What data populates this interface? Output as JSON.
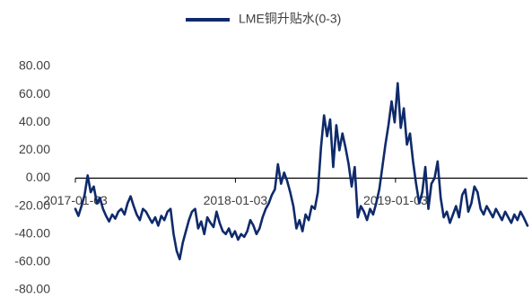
{
  "chart_data": {
    "type": "line",
    "title": "",
    "xlabel": "",
    "ylabel": "",
    "ylim": [
      -80,
      80
    ],
    "y_ticks": [
      "80.00",
      "60.00",
      "40.00",
      "20.00",
      "0.00",
      "-20.00",
      "-40.00",
      "-60.00",
      "-80.00"
    ],
    "x_tick_labels": [
      "2017-01-03",
      "2018-01-03",
      "2019-01-03"
    ],
    "xlim": [
      "2017-01-03",
      "2019-10-31"
    ],
    "grid": false,
    "legend_position": "top-center",
    "series": [
      {
        "name": "LME铜升贴水(0-3)",
        "color": "#0f2a6b",
        "points": [
          [
            "2017-01-03",
            -22
          ],
          [
            "2017-01-10",
            -27
          ],
          [
            "2017-01-17",
            -20
          ],
          [
            "2017-01-24",
            -12
          ],
          [
            "2017-01-31",
            2
          ],
          [
            "2017-02-07",
            -10
          ],
          [
            "2017-02-14",
            -6
          ],
          [
            "2017-02-21",
            -18
          ],
          [
            "2017-02-28",
            -14
          ],
          [
            "2017-03-07",
            -22
          ],
          [
            "2017-03-14",
            -27
          ],
          [
            "2017-03-21",
            -31
          ],
          [
            "2017-03-28",
            -26
          ],
          [
            "2017-04-04",
            -29
          ],
          [
            "2017-04-11",
            -24
          ],
          [
            "2017-04-18",
            -22
          ],
          [
            "2017-04-25",
            -26
          ],
          [
            "2017-05-02",
            -18
          ],
          [
            "2017-05-09",
            -13
          ],
          [
            "2017-05-16",
            -20
          ],
          [
            "2017-05-23",
            -26
          ],
          [
            "2017-05-30",
            -30
          ],
          [
            "2017-06-06",
            -22
          ],
          [
            "2017-06-13",
            -24
          ],
          [
            "2017-06-20",
            -28
          ],
          [
            "2017-06-27",
            -32
          ],
          [
            "2017-07-04",
            -28
          ],
          [
            "2017-07-11",
            -34
          ],
          [
            "2017-07-18",
            -27
          ],
          [
            "2017-07-25",
            -30
          ],
          [
            "2017-08-01",
            -24
          ],
          [
            "2017-08-08",
            -22
          ],
          [
            "2017-08-15",
            -40
          ],
          [
            "2017-08-22",
            -52
          ],
          [
            "2017-08-29",
            -58
          ],
          [
            "2017-09-05",
            -46
          ],
          [
            "2017-09-12",
            -38
          ],
          [
            "2017-09-19",
            -30
          ],
          [
            "2017-09-26",
            -24
          ],
          [
            "2017-10-03",
            -22
          ],
          [
            "2017-10-10",
            -36
          ],
          [
            "2017-10-17",
            -31
          ],
          [
            "2017-10-24",
            -40
          ],
          [
            "2017-10-31",
            -28
          ],
          [
            "2017-11-07",
            -32
          ],
          [
            "2017-11-14",
            -35
          ],
          [
            "2017-11-21",
            -24
          ],
          [
            "2017-11-28",
            -32
          ],
          [
            "2017-12-05",
            -38
          ],
          [
            "2017-12-12",
            -40
          ],
          [
            "2017-12-19",
            -36
          ],
          [
            "2017-12-26",
            -42
          ],
          [
            "2018-01-02",
            -38
          ],
          [
            "2018-01-09",
            -44
          ],
          [
            "2018-01-16",
            -40
          ],
          [
            "2018-01-23",
            -42
          ],
          [
            "2018-01-30",
            -38
          ],
          [
            "2018-02-06",
            -30
          ],
          [
            "2018-02-13",
            -34
          ],
          [
            "2018-02-20",
            -40
          ],
          [
            "2018-02-27",
            -36
          ],
          [
            "2018-03-06",
            -28
          ],
          [
            "2018-03-13",
            -22
          ],
          [
            "2018-03-20",
            -18
          ],
          [
            "2018-03-27",
            -12
          ],
          [
            "2018-04-03",
            -8
          ],
          [
            "2018-04-10",
            10
          ],
          [
            "2018-04-17",
            -4
          ],
          [
            "2018-04-24",
            4
          ],
          [
            "2018-05-01",
            -2
          ],
          [
            "2018-05-08",
            -10
          ],
          [
            "2018-05-15",
            -20
          ],
          [
            "2018-05-22",
            -36
          ],
          [
            "2018-05-29",
            -30
          ],
          [
            "2018-06-05",
            -38
          ],
          [
            "2018-06-12",
            -26
          ],
          [
            "2018-06-19",
            -30
          ],
          [
            "2018-06-26",
            -20
          ],
          [
            "2018-07-03",
            -22
          ],
          [
            "2018-07-10",
            -10
          ],
          [
            "2018-07-17",
            22
          ],
          [
            "2018-07-24",
            45
          ],
          [
            "2018-07-31",
            30
          ],
          [
            "2018-08-07",
            42
          ],
          [
            "2018-08-14",
            8
          ],
          [
            "2018-08-21",
            38
          ],
          [
            "2018-08-28",
            20
          ],
          [
            "2018-09-04",
            32
          ],
          [
            "2018-09-11",
            22
          ],
          [
            "2018-09-18",
            10
          ],
          [
            "2018-09-25",
            -6
          ],
          [
            "2018-10-02",
            8
          ],
          [
            "2018-10-09",
            -28
          ],
          [
            "2018-10-16",
            -20
          ],
          [
            "2018-10-23",
            -24
          ],
          [
            "2018-10-30",
            -30
          ],
          [
            "2018-11-06",
            -22
          ],
          [
            "2018-11-13",
            -26
          ],
          [
            "2018-11-20",
            -18
          ],
          [
            "2018-11-27",
            -8
          ],
          [
            "2018-12-04",
            8
          ],
          [
            "2018-12-11",
            24
          ],
          [
            "2018-12-18",
            38
          ],
          [
            "2018-12-25",
            55
          ],
          [
            "2019-01-01",
            40
          ],
          [
            "2019-01-08",
            68
          ],
          [
            "2019-01-15",
            36
          ],
          [
            "2019-01-22",
            50
          ],
          [
            "2019-01-29",
            24
          ],
          [
            "2019-02-05",
            32
          ],
          [
            "2019-02-12",
            12
          ],
          [
            "2019-02-19",
            -4
          ],
          [
            "2019-02-26",
            -18
          ],
          [
            "2019-03-05",
            -10
          ],
          [
            "2019-03-12",
            8
          ],
          [
            "2019-03-19",
            -22
          ],
          [
            "2019-03-26",
            -4
          ],
          [
            "2019-04-02",
            0
          ],
          [
            "2019-04-09",
            12
          ],
          [
            "2019-04-16",
            -14
          ],
          [
            "2019-04-23",
            -28
          ],
          [
            "2019-04-30",
            -24
          ],
          [
            "2019-05-07",
            -32
          ],
          [
            "2019-05-14",
            -26
          ],
          [
            "2019-05-21",
            -20
          ],
          [
            "2019-05-28",
            -28
          ],
          [
            "2019-06-04",
            -12
          ],
          [
            "2019-06-11",
            -8
          ],
          [
            "2019-06-18",
            -24
          ],
          [
            "2019-06-25",
            -18
          ],
          [
            "2019-07-02",
            -6
          ],
          [
            "2019-07-09",
            -10
          ],
          [
            "2019-07-16",
            -22
          ],
          [
            "2019-07-23",
            -26
          ],
          [
            "2019-07-30",
            -20
          ],
          [
            "2019-08-06",
            -24
          ],
          [
            "2019-08-13",
            -28
          ],
          [
            "2019-08-20",
            -22
          ],
          [
            "2019-08-27",
            -26
          ],
          [
            "2019-09-03",
            -30
          ],
          [
            "2019-09-10",
            -24
          ],
          [
            "2019-09-17",
            -28
          ],
          [
            "2019-09-24",
            -32
          ],
          [
            "2019-10-01",
            -26
          ],
          [
            "2019-10-08",
            -30
          ],
          [
            "2019-10-15",
            -24
          ],
          [
            "2019-10-22",
            -28
          ],
          [
            "2019-10-31",
            -34
          ]
        ]
      }
    ]
  }
}
